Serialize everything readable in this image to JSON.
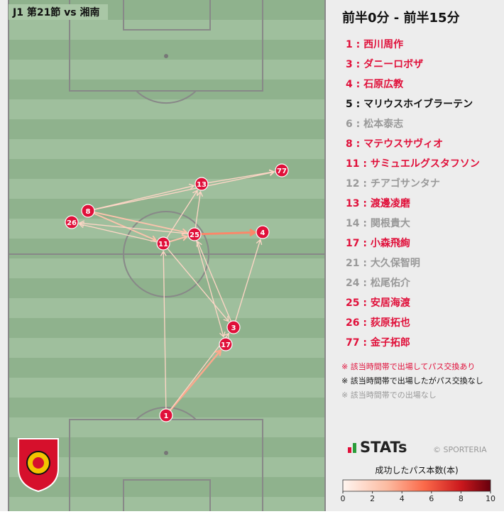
{
  "header": {
    "title": "J1 第21節 vs 湘南"
  },
  "panel": {
    "title": "前半0分 - 前半15分"
  },
  "players": [
    {
      "label": "1 : 西川周作",
      "color": "#e0103a"
    },
    {
      "label": "3 : ダニーロボザ",
      "color": "#e0103a"
    },
    {
      "label": "4 : 石原広教",
      "color": "#e0103a"
    },
    {
      "label": "5 : マリウスホイブラーテン",
      "color": "#111111"
    },
    {
      "label": "6 : 松本泰志",
      "color": "#999999"
    },
    {
      "label": "8 : マテウスサヴィオ",
      "color": "#e0103a"
    },
    {
      "label": "11 : サミュエルグスタフソン",
      "color": "#e0103a"
    },
    {
      "label": "12 : チアゴサンタナ",
      "color": "#999999"
    },
    {
      "label": "13 : 渡邊凌磨",
      "color": "#e0103a"
    },
    {
      "label": "14 : 関根貴大",
      "color": "#999999"
    },
    {
      "label": "17 : 小森飛絢",
      "color": "#e0103a"
    },
    {
      "label": "21 : 大久保智明",
      "color": "#999999"
    },
    {
      "label": "24 : 松尾佑介",
      "color": "#999999"
    },
    {
      "label": "25 : 安居海渡",
      "color": "#e0103a"
    },
    {
      "label": "26 : 荻原拓也",
      "color": "#e0103a"
    },
    {
      "label": "77 : 金子拓郎",
      "color": "#e0103a"
    }
  ],
  "nodes": [
    {
      "label": "1"
    },
    {
      "label": "3"
    },
    {
      "label": "4"
    },
    {
      "label": "8"
    },
    {
      "label": "11"
    },
    {
      "label": "13"
    },
    {
      "label": "17"
    },
    {
      "label": "25"
    },
    {
      "label": "26"
    },
    {
      "label": "77"
    }
  ],
  "passes": [
    {
      "from": 0,
      "to": 6,
      "count": 3
    },
    {
      "from": 0,
      "to": 4,
      "count": 1
    },
    {
      "from": 0,
      "to": 1,
      "count": 1
    },
    {
      "from": 4,
      "to": 1,
      "count": 1
    },
    {
      "from": 1,
      "to": 2,
      "count": 1
    },
    {
      "from": 7,
      "to": 2,
      "count": 4
    },
    {
      "from": 3,
      "to": 4,
      "count": 2
    },
    {
      "from": 3,
      "to": 7,
      "count": 2
    },
    {
      "from": 3,
      "to": 5,
      "count": 1
    },
    {
      "from": 3,
      "to": 9,
      "count": 1
    },
    {
      "from": 4,
      "to": 8,
      "count": 1
    },
    {
      "from": 7,
      "to": 8,
      "count": 1
    },
    {
      "from": 4,
      "to": 7,
      "count": 2
    },
    {
      "from": 4,
      "to": 5,
      "count": 1
    },
    {
      "from": 7,
      "to": 5,
      "count": 1
    },
    {
      "from": 5,
      "to": 9,
      "count": 1
    },
    {
      "from": 1,
      "to": 7,
      "count": 1
    },
    {
      "from": 7,
      "to": 6,
      "count": 1
    }
  ],
  "notes": [
    {
      "text": "※ 該当時間帯で出場してパス交換あり",
      "color": "#e0103a"
    },
    {
      "text": "※ 該当時間帯で出場したがパス交換なし",
      "color": "#111111"
    },
    {
      "text": "※ 該当時間帯での出場なし",
      "color": "#999999"
    }
  ],
  "logo": {
    "brand": "STATs",
    "credit": "© SPORTERIA"
  },
  "colorbar": {
    "title": "成功したパス本数(本)",
    "range": [
      0,
      10
    ],
    "ticks": [
      0,
      2,
      4,
      6,
      8,
      10
    ]
  }
}
